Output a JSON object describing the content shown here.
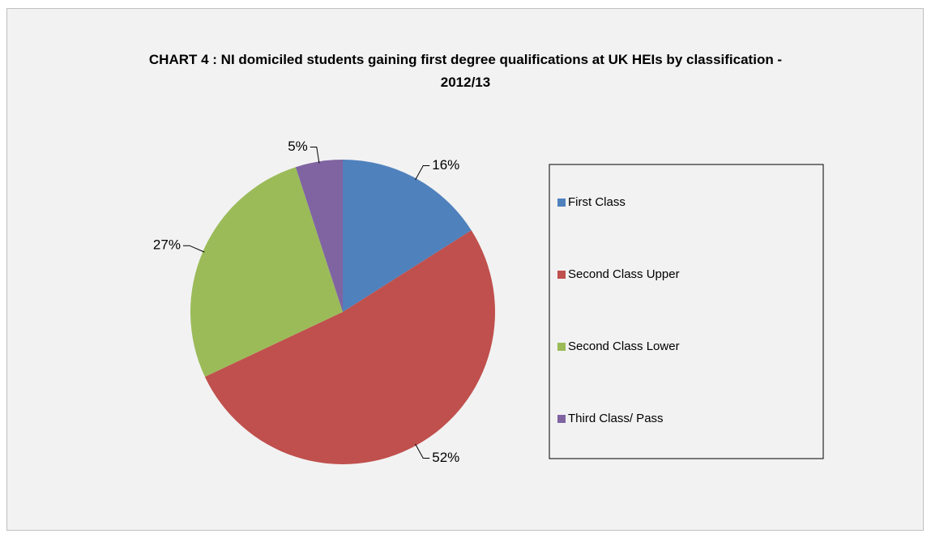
{
  "chart_data": {
    "type": "pie",
    "title": "CHART 4 : NI domiciled students gaining first degree qualifications at UK HEIs by classification - 2012/13",
    "categories": [
      "First Class",
      "Second Class Upper",
      "Second Class Lower",
      "Third Class/ Pass"
    ],
    "values": [
      16,
      52,
      27,
      5
    ],
    "value_labels": [
      "16%",
      "52%",
      "27%",
      "5%"
    ],
    "colors": [
      "#4f81bd",
      "#c0504d",
      "#9bbb59",
      "#8064a2"
    ],
    "legend": "right"
  }
}
